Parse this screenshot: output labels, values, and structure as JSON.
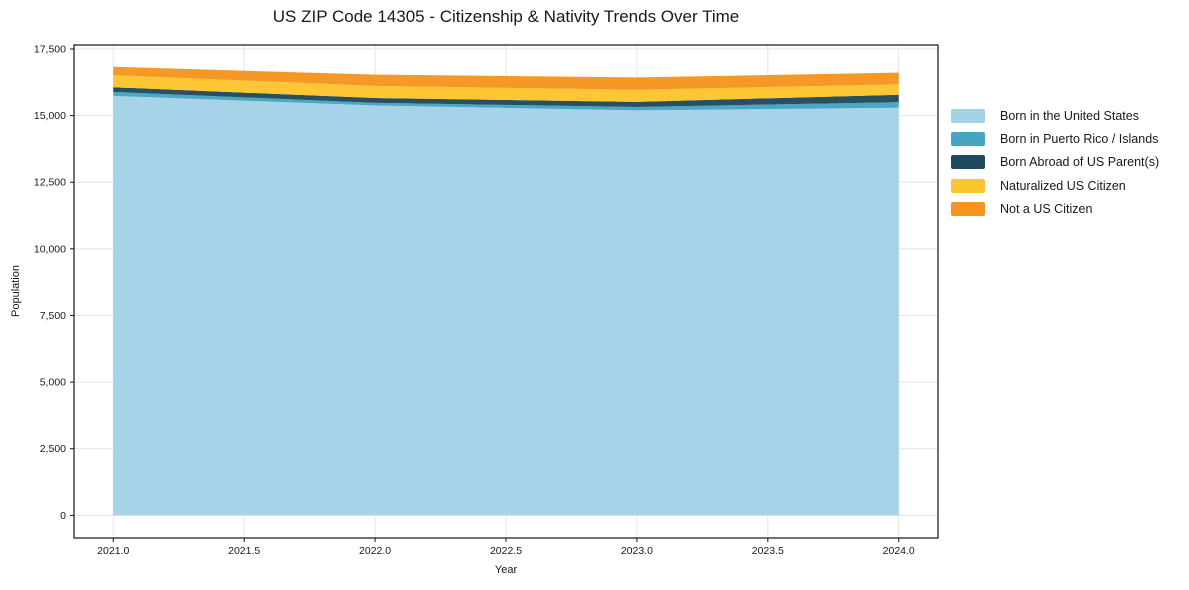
{
  "chart_data": {
    "type": "area",
    "stacked": true,
    "title": "US ZIP Code 14305 - Citizenship & Nativity Trends Over Time",
    "xlabel": "Year",
    "ylabel": "Population",
    "x": [
      2021,
      2022,
      2023,
      2024
    ],
    "series": [
      {
        "name": "Born in the United States",
        "color": "#A3D2E6",
        "values": [
          15740,
          15380,
          15195,
          15295
        ]
      },
      {
        "name": "Born in Puerto Rico / Islands",
        "color": "#45A5C3",
        "values": [
          150,
          100,
          130,
          210
        ]
      },
      {
        "name": "Born Abroad of US Parent(s)",
        "color": "#214A5C",
        "values": [
          175,
          180,
          190,
          280
        ]
      },
      {
        "name": "Naturalized US Citizen",
        "color": "#FCC42D",
        "values": [
          455,
          455,
          455,
          390
        ]
      },
      {
        "name": "Not a US Citizen",
        "color": "#F6951E",
        "values": [
          315,
          425,
          465,
          440
        ]
      }
    ],
    "x_ticks": [
      2021.0,
      2021.5,
      2022.0,
      2022.5,
      2023.0,
      2023.5,
      2024.0
    ],
    "x_tick_labels": [
      "2021.0",
      "2021.5",
      "2022.0",
      "2022.5",
      "2023.0",
      "2023.5",
      "2024.0"
    ],
    "y_ticks": [
      0,
      2500,
      5000,
      7500,
      10000,
      12500,
      15000,
      17500
    ],
    "y_tick_labels": [
      "0",
      "2,500",
      "5,000",
      "7,500",
      "10,000",
      "12,500",
      "15,000",
      "17,500"
    ],
    "xlim": [
      2020.85,
      2024.15
    ],
    "ylim": [
      -850,
      17650
    ],
    "grid": true,
    "legend_position": "right",
    "colors": {
      "grid": "#e4e4e4",
      "spine": "#141414",
      "background": "#ffffff"
    }
  }
}
